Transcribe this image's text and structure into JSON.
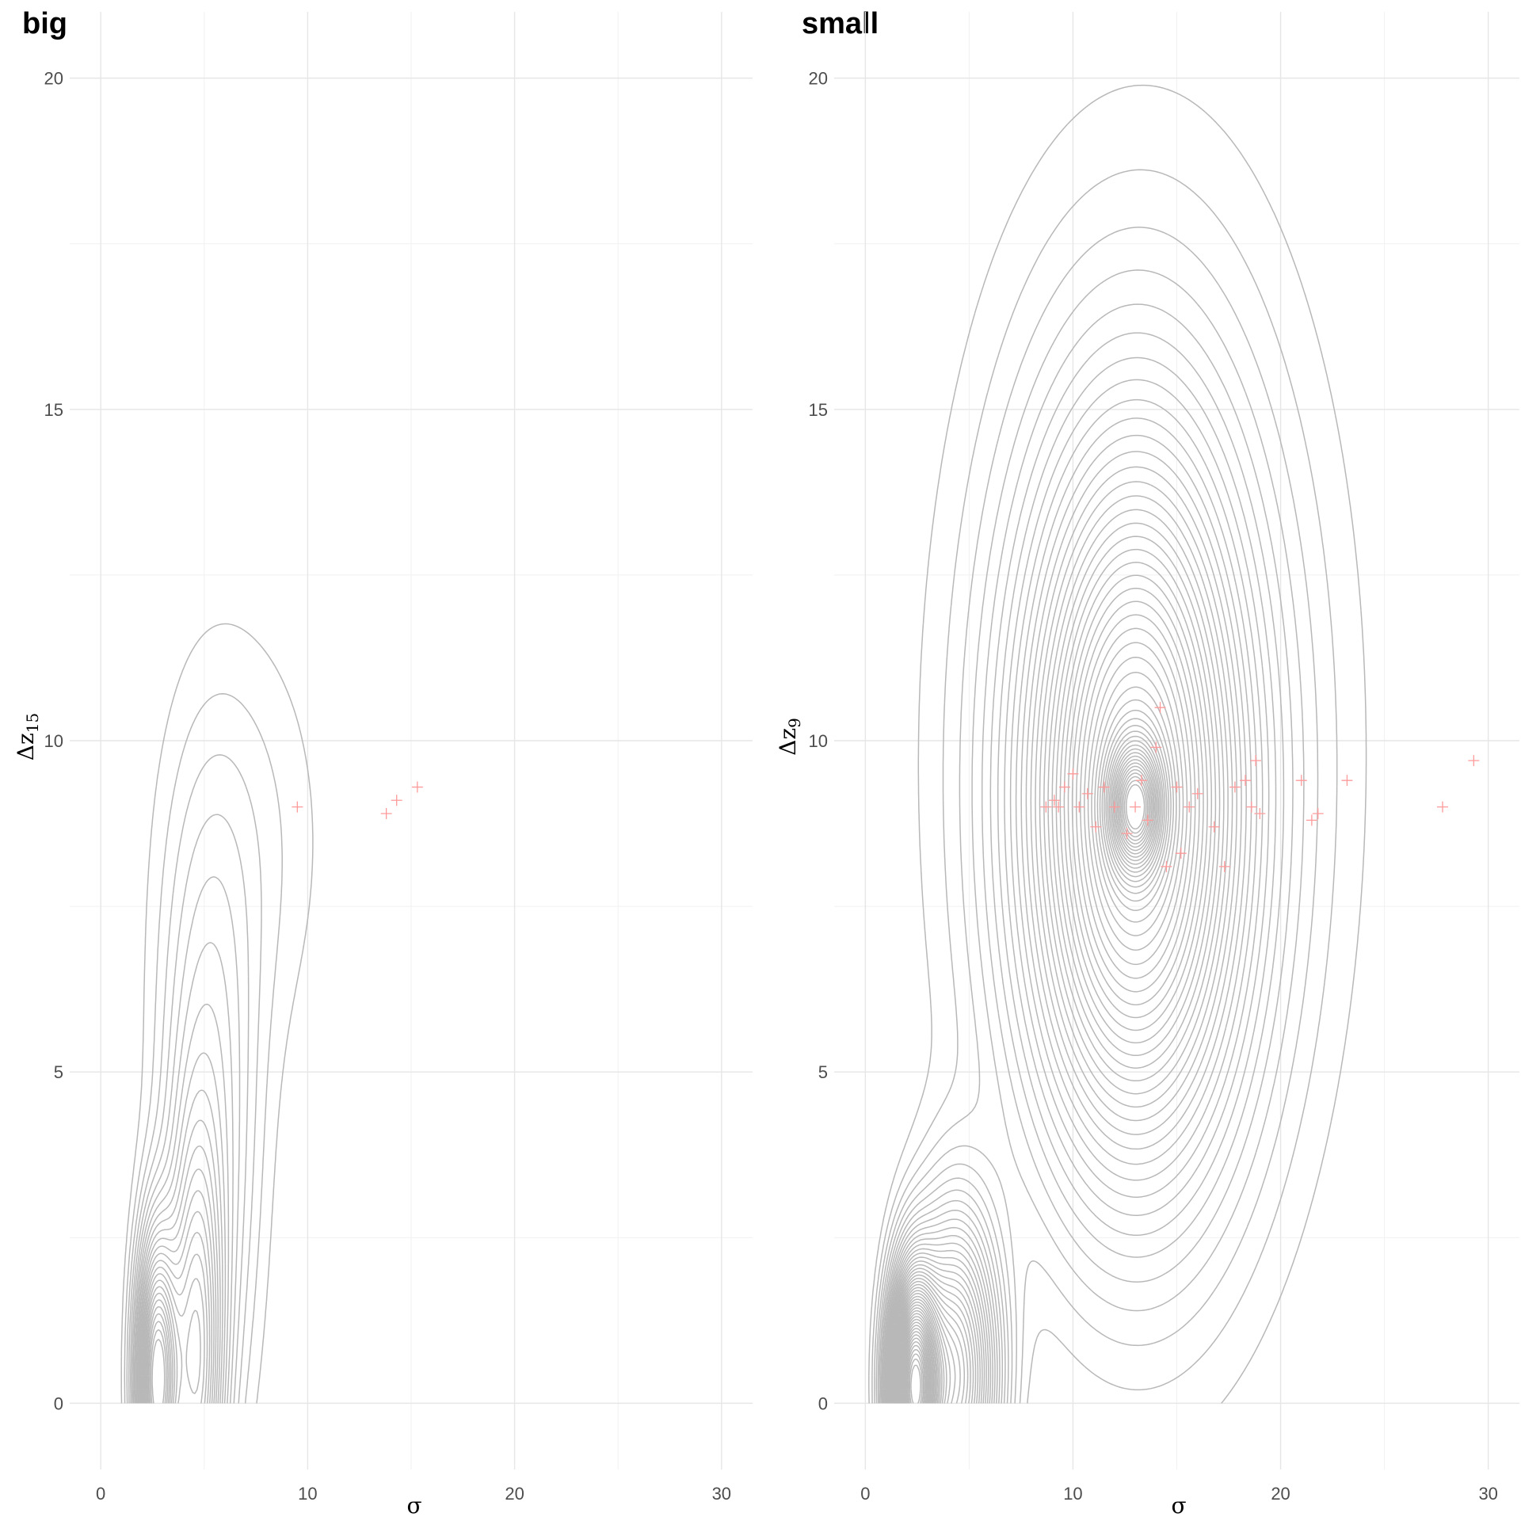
{
  "chart_data": [
    {
      "type": "contour",
      "title": "big",
      "xlabel": "σ",
      "ylabel_base": "Δz",
      "ylabel_sub": "15",
      "xlim": [
        -1.5,
        31.5
      ],
      "ylim": [
        -1,
        21
      ],
      "x_ticks": [
        0,
        10,
        20,
        30
      ],
      "x_tick_labels": [
        "0",
        "10",
        "20",
        "30"
      ],
      "y_ticks": [
        0,
        5,
        10,
        15,
        20
      ],
      "y_tick_labels": [
        "0",
        "5",
        "10",
        "15",
        "20"
      ],
      "grid": true,
      "density": {
        "n_levels": 26,
        "components": [
          {
            "cx": 2.7,
            "cy": 0.35,
            "sx": 0.65,
            "sy": 1.4,
            "w": 1.0
          },
          {
            "cx": 4.6,
            "cy": 0.45,
            "sx": 0.85,
            "sy": 2.2,
            "w": 0.55
          },
          {
            "cx": 5.2,
            "cy": 4.0,
            "sx": 1.6,
            "sy": 3.2,
            "w": 0.22
          },
          {
            "cx": 7.0,
            "cy": 8.5,
            "sx": 2.8,
            "sy": 2.4,
            "w": 0.07
          }
        ]
      },
      "outliers": [
        {
          "x": 9.5,
          "y": 9.0
        },
        {
          "x": 13.8,
          "y": 8.9
        },
        {
          "x": 14.3,
          "y": 9.1
        },
        {
          "x": 15.3,
          "y": 9.3
        }
      ]
    },
    {
      "type": "contour",
      "title": "small",
      "xlabel": "σ",
      "ylabel_base": "Δz",
      "ylabel_sub": "9",
      "xlim": [
        -1.5,
        31.5
      ],
      "ylim": [
        -1,
        21
      ],
      "x_ticks": [
        0,
        10,
        20,
        30
      ],
      "x_tick_labels": [
        "0",
        "10",
        "20",
        "30"
      ],
      "y_ticks": [
        0,
        5,
        10,
        15,
        20
      ],
      "y_tick_labels": [
        "0",
        "5",
        "10",
        "15",
        "20"
      ],
      "grid": true,
      "density": {
        "n_levels": 48,
        "components": [
          {
            "cx": 2.3,
            "cy": 0.25,
            "sx": 0.75,
            "sy": 1.1,
            "w": 1.0
          },
          {
            "cx": 4.3,
            "cy": 0.4,
            "sx": 1.4,
            "sy": 1.6,
            "w": 0.55
          },
          {
            "cx": 13.0,
            "cy": 9.0,
            "sx": 3.3,
            "sy": 3.3,
            "w": 0.65
          },
          {
            "cx": 13.0,
            "cy": 9.0,
            "sx": 0.8,
            "sy": 0.6,
            "w": 0.5
          },
          {
            "cx": 13.5,
            "cy": 10.0,
            "sx": 6.5,
            "sy": 6.0,
            "w": 0.1
          }
        ]
      },
      "outliers": [
        {
          "x": 8.7,
          "y": 9.0
        },
        {
          "x": 9.1,
          "y": 9.1
        },
        {
          "x": 9.3,
          "y": 9.0
        },
        {
          "x": 9.6,
          "y": 9.3
        },
        {
          "x": 10.0,
          "y": 9.5
        },
        {
          "x": 10.3,
          "y": 9.0
        },
        {
          "x": 10.7,
          "y": 9.2
        },
        {
          "x": 11.1,
          "y": 8.7
        },
        {
          "x": 11.5,
          "y": 9.3
        },
        {
          "x": 12.0,
          "y": 9.0
        },
        {
          "x": 12.6,
          "y": 8.6
        },
        {
          "x": 13.0,
          "y": 9.0
        },
        {
          "x": 13.3,
          "y": 9.4
        },
        {
          "x": 13.6,
          "y": 8.8
        },
        {
          "x": 14.0,
          "y": 9.9
        },
        {
          "x": 14.2,
          "y": 10.5
        },
        {
          "x": 14.5,
          "y": 8.1
        },
        {
          "x": 15.0,
          "y": 9.3
        },
        {
          "x": 15.2,
          "y": 8.3
        },
        {
          "x": 15.6,
          "y": 9.0
        },
        {
          "x": 16.0,
          "y": 9.2
        },
        {
          "x": 16.8,
          "y": 8.7
        },
        {
          "x": 17.3,
          "y": 8.1
        },
        {
          "x": 17.8,
          "y": 9.3
        },
        {
          "x": 18.3,
          "y": 9.4
        },
        {
          "x": 18.6,
          "y": 9.0
        },
        {
          "x": 18.8,
          "y": 9.7
        },
        {
          "x": 19.0,
          "y": 8.9
        },
        {
          "x": 21.0,
          "y": 9.4
        },
        {
          "x": 21.5,
          "y": 8.8
        },
        {
          "x": 21.8,
          "y": 8.9
        },
        {
          "x": 23.2,
          "y": 9.4
        },
        {
          "x": 27.8,
          "y": 9.0
        },
        {
          "x": 29.3,
          "y": 9.7
        }
      ]
    }
  ]
}
